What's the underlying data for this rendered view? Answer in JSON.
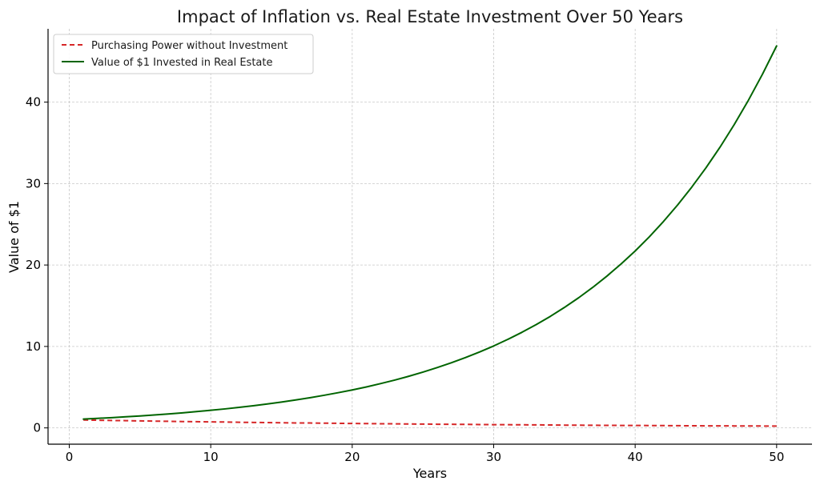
{
  "chart_data": {
    "type": "line",
    "title": "Impact of Inflation vs. Real Estate Investment Over 50 Years",
    "xlabel": "Years",
    "ylabel": "Value of $1",
    "xlim": [
      -1.5,
      52.5
    ],
    "ylim": [
      -2.0,
      49.0
    ],
    "xticks": [
      0,
      10,
      20,
      30,
      40,
      50
    ],
    "yticks": [
      0,
      10,
      20,
      30,
      40
    ],
    "grid": true,
    "legend_position": "top-left",
    "x": [
      1,
      2,
      3,
      4,
      5,
      6,
      7,
      8,
      9,
      10,
      11,
      12,
      13,
      14,
      15,
      16,
      17,
      18,
      19,
      20,
      21,
      22,
      23,
      24,
      25,
      26,
      27,
      28,
      29,
      30,
      31,
      32,
      33,
      34,
      35,
      36,
      37,
      38,
      39,
      40,
      41,
      42,
      43,
      44,
      45,
      46,
      47,
      48,
      49,
      50
    ],
    "series": [
      {
        "name": "Purchasing Power without Investment",
        "color": "#d62728",
        "style": "dashed",
        "values": [
          0.97,
          0.94,
          0.91,
          0.89,
          0.86,
          0.83,
          0.81,
          0.78,
          0.76,
          0.74,
          0.72,
          0.69,
          0.67,
          0.65,
          0.63,
          0.61,
          0.6,
          0.58,
          0.56,
          0.54,
          0.53,
          0.51,
          0.5,
          0.48,
          0.47,
          0.45,
          0.44,
          0.43,
          0.41,
          0.4,
          0.39,
          0.38,
          0.37,
          0.36,
          0.34,
          0.33,
          0.32,
          0.31,
          0.3,
          0.3,
          0.29,
          0.28,
          0.27,
          0.26,
          0.25,
          0.25,
          0.24,
          0.23,
          0.23,
          0.22
        ]
      },
      {
        "name": "Value of $1 Invested in Real Estate",
        "color": "#006400",
        "style": "solid",
        "values": [
          1.08,
          1.17,
          1.26,
          1.36,
          1.47,
          1.59,
          1.71,
          1.85,
          2.0,
          2.16,
          2.33,
          2.52,
          2.72,
          2.94,
          3.17,
          3.43,
          3.7,
          4.0,
          4.32,
          4.66,
          5.03,
          5.44,
          5.87,
          6.34,
          6.85,
          7.4,
          7.99,
          8.63,
          9.32,
          10.06,
          10.87,
          11.74,
          12.68,
          13.69,
          14.79,
          15.97,
          17.25,
          18.63,
          20.12,
          21.72,
          23.46,
          25.34,
          27.37,
          29.56,
          31.92,
          34.47,
          37.23,
          40.21,
          43.43,
          46.9
        ]
      }
    ]
  }
}
